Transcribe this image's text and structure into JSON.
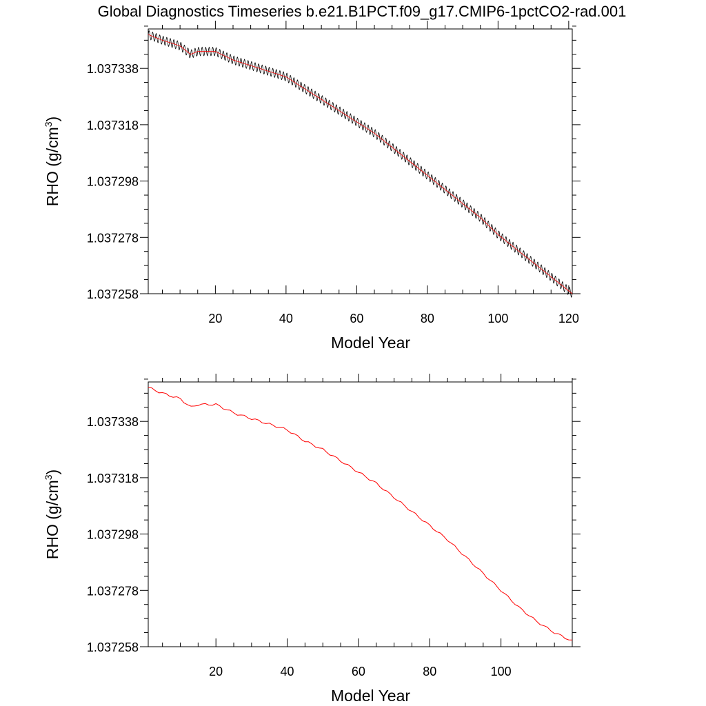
{
  "title": "Global Diagnostics Timeseries b.e21.B1PCT.f09_g17.CMIP6-1pctCO2-rad.001",
  "colors": {
    "monthly_line": "#000000",
    "overlay_line": "#ff0000",
    "annual_line": "#ff0000"
  },
  "chart_data": [
    {
      "type": "line",
      "title": "",
      "xlabel": "Model Year",
      "ylabel": "RHO (g/cm",
      "ylabel_sup": "3",
      "ylabel_close": ")",
      "xlim": [
        1,
        121
      ],
      "ylim": [
        1.037258,
        1.037352
      ],
      "xticks": [
        20,
        40,
        60,
        80,
        100,
        120
      ],
      "yticks": [
        1.037258,
        1.037278,
        1.037298,
        1.037318,
        1.037338
      ],
      "ytick_labels": [
        "1.037258",
        "1.037278",
        "1.037298",
        "1.037318",
        "1.037338"
      ],
      "seasonal_amplitude": 1.5e-06,
      "grid": false,
      "series": [
        {
          "color": "#000000",
          "sampling": "monthly",
          "x": [
            1,
            5,
            10,
            13,
            15,
            20,
            25,
            30,
            35,
            40,
            45,
            50,
            55,
            60,
            65,
            70,
            75,
            80,
            85,
            90,
            95,
            100,
            105,
            110,
            115,
            121
          ],
          "values": [
            1.03735,
            1.037348,
            1.037346,
            1.037343,
            1.037344,
            1.037344,
            1.037341,
            1.037339,
            1.037337,
            1.037335,
            1.037331,
            1.037327,
            1.037323,
            1.037319,
            1.037315,
            1.03731,
            1.037305,
            1.0373,
            1.037295,
            1.03729,
            1.037285,
            1.037279,
            1.037274,
            1.037269,
            1.037264,
            1.037258
          ]
        }
      ]
    },
    {
      "type": "line",
      "title": "",
      "xlabel": "Model Year",
      "ylabel": "RHO (g/cm",
      "ylabel_sup": "3",
      "ylabel_close": ")",
      "xlim": [
        1,
        120
      ],
      "ylim": [
        1.037258,
        1.037352
      ],
      "xticks": [
        20,
        40,
        60,
        80,
        100
      ],
      "yticks": [
        1.037258,
        1.037278,
        1.037298,
        1.037318,
        1.037338
      ],
      "ytick_labels": [
        "1.037258",
        "1.037278",
        "1.037298",
        "1.037318",
        "1.037338"
      ],
      "grid": false,
      "series": [
        {
          "color": "#ff0000",
          "sampling": "annual",
          "x": [
            1,
            5,
            10,
            13,
            15,
            20,
            25,
            30,
            35,
            40,
            45,
            50,
            55,
            60,
            65,
            70,
            75,
            80,
            85,
            90,
            95,
            100,
            105,
            110,
            115,
            120
          ],
          "values": [
            1.03735,
            1.037348,
            1.037346,
            1.037343,
            1.037344,
            1.037344,
            1.037341,
            1.037339,
            1.037337,
            1.037335,
            1.037331,
            1.037328,
            1.037324,
            1.03732,
            1.037316,
            1.037311,
            1.037306,
            1.037301,
            1.037296,
            1.03729,
            1.037284,
            1.037278,
            1.037272,
            1.037267,
            1.037263,
            1.03726
          ]
        }
      ]
    }
  ]
}
